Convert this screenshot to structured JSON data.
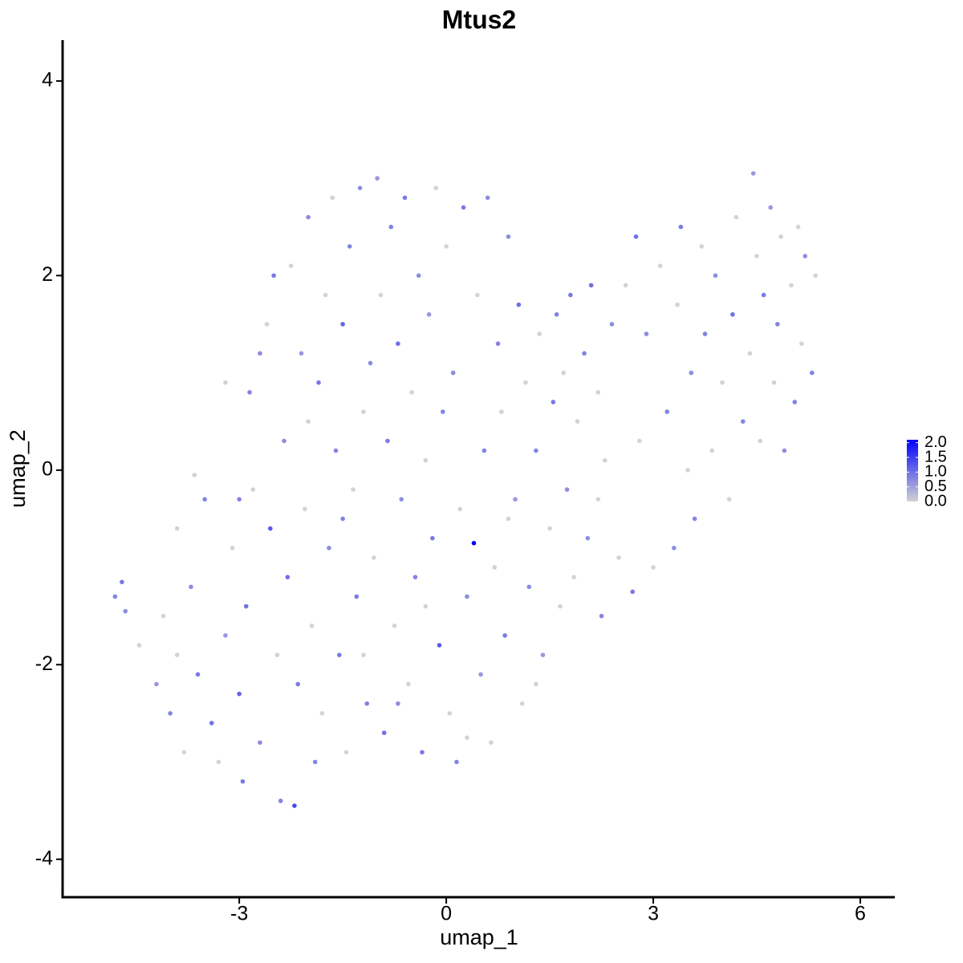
{
  "chart_data": {
    "type": "scatter",
    "title": "Mtus2",
    "x_label": "umap_1",
    "y_label": "umap_2",
    "xlim": [
      -5.56,
      6.5
    ],
    "ylim": [
      -4.39,
      4.42
    ],
    "xticks": [
      -3,
      0,
      3,
      6
    ],
    "yticks": [
      -4,
      -2,
      0,
      2,
      4
    ],
    "color_scale": {
      "low": "#d3d3d3",
      "high": "#0000ff"
    },
    "clim": [
      0,
      2.1
    ],
    "cticks": [
      {
        "value": 0,
        "label": "0.0"
      },
      {
        "value": 0.5,
        "label": "0.5"
      },
      {
        "value": 1,
        "label": "1.0"
      },
      {
        "value": 1.5,
        "label": "1.5"
      },
      {
        "value": 2,
        "label": "2.0"
      }
    ],
    "x": [
      -4.8,
      -4.7,
      -4.65,
      -4.45,
      -4.2,
      -4.1,
      -4.0,
      -3.9,
      -3.8,
      -3.7,
      -3.6,
      -3.5,
      -3.4,
      -3.3,
      -3.2,
      -3.1,
      -3.0,
      -2.95,
      -2.9,
      -2.85,
      -2.8,
      -2.7,
      -2.6,
      -2.55,
      -2.5,
      -2.45,
      -2.4,
      -2.35,
      -2.3,
      -2.25,
      -2.2,
      -2.15,
      -2.1,
      -2.05,
      -2.0,
      -1.95,
      -1.9,
      -1.85,
      -1.8,
      -1.75,
      -1.7,
      -1.65,
      -1.6,
      -1.55,
      -1.5,
      -1.45,
      -1.4,
      -1.35,
      -1.3,
      -1.25,
      -1.2,
      -1.15,
      -1.1,
      -1.05,
      -1.0,
      -0.95,
      -0.9,
      -0.85,
      -0.8,
      -0.75,
      -0.7,
      -0.65,
      -0.6,
      -0.55,
      -0.5,
      -0.45,
      -0.4,
      -0.35,
      -0.3,
      -0.25,
      -0.2,
      -0.15,
      -0.1,
      -0.05,
      0.0,
      0.05,
      0.1,
      0.15,
      0.2,
      0.25,
      0.3,
      0.4,
      0.45,
      0.5,
      0.55,
      0.6,
      0.65,
      0.7,
      0.75,
      0.8,
      0.85,
      0.9,
      1.0,
      1.05,
      1.1,
      1.15,
      1.2,
      1.3,
      1.35,
      1.4,
      1.5,
      1.55,
      1.6,
      1.65,
      1.7,
      1.75,
      1.8,
      1.85,
      1.9,
      2.0,
      2.05,
      2.1,
      2.2,
      2.25,
      2.3,
      2.4,
      2.5,
      2.6,
      2.7,
      2.75,
      2.8,
      2.9,
      3.0,
      3.1,
      3.2,
      3.3,
      3.35,
      3.4,
      3.5,
      3.55,
      3.6,
      3.7,
      3.75,
      3.85,
      3.9,
      4.0,
      4.1,
      4.15,
      4.2,
      4.3,
      4.4,
      4.45,
      4.5,
      4.55,
      4.6,
      4.7,
      4.75,
      4.8,
      4.85,
      4.9,
      5.0,
      5.05,
      5.1,
      5.15,
      5.2,
      5.3,
      5.35,
      -3.65,
      -3.2,
      -2.7,
      -3.0,
      -3.9,
      -1.2,
      -0.7,
      0.3,
      0.9,
      1.3,
      -2.0,
      -1.5,
      -0.3,
      2.2
    ],
    "y": [
      -1.3,
      -1.15,
      -1.45,
      -1.8,
      -2.2,
      -1.5,
      -2.5,
      -1.9,
      -2.9,
      -1.2,
      -2.1,
      -0.3,
      -2.6,
      -3.0,
      -1.7,
      -0.8,
      -2.3,
      -3.2,
      -1.4,
      0.8,
      -0.2,
      -2.8,
      1.5,
      -0.6,
      2.0,
      -1.9,
      -3.4,
      0.3,
      -1.1,
      2.1,
      -3.45,
      -2.2,
      1.2,
      -0.4,
      2.6,
      -1.6,
      -3.0,
      0.9,
      -2.5,
      1.8,
      -0.8,
      2.8,
      0.2,
      -1.9,
      1.5,
      -2.9,
      2.3,
      -0.2,
      -1.3,
      2.9,
      0.6,
      -2.4,
      1.1,
      -0.9,
      3.0,
      1.8,
      -2.7,
      0.3,
      2.5,
      -1.6,
      1.3,
      -0.3,
      2.8,
      -2.2,
      0.8,
      -1.1,
      2.0,
      -2.9,
      0.1,
      1.6,
      -0.7,
      2.9,
      -1.8,
      0.6,
      2.3,
      -2.5,
      1.0,
      -3.0,
      -0.4,
      2.7,
      -1.3,
      -0.75,
      1.8,
      -2.1,
      0.2,
      2.8,
      -2.8,
      -1.0,
      1.3,
      0.6,
      -1.7,
      2.4,
      -0.3,
      1.7,
      -2.4,
      0.9,
      -1.2,
      0.2,
      1.4,
      -1.9,
      -0.6,
      0.7,
      1.6,
      -1.4,
      1.0,
      -0.2,
      1.8,
      -1.1,
      0.5,
      1.2,
      -0.7,
      1.9,
      0.8,
      -1.5,
      0.1,
      1.5,
      -0.9,
      1.9,
      -1.25,
      2.4,
      0.3,
      1.4,
      -1.0,
      2.1,
      0.6,
      -0.8,
      1.7,
      2.5,
      0.0,
      1.0,
      -0.5,
      2.3,
      1.4,
      0.2,
      2.0,
      0.9,
      -0.3,
      1.6,
      2.6,
      0.5,
      1.2,
      3.05,
      2.2,
      0.3,
      1.8,
      2.7,
      0.9,
      1.5,
      2.4,
      0.2,
      1.9,
      0.7,
      2.5,
      1.3,
      2.2,
      1.0,
      2.0,
      -0.05,
      0.9,
      1.2,
      -0.3,
      -0.6,
      -1.9,
      -2.4,
      -2.75,
      -0.5,
      -2.2,
      0.5,
      -0.5,
      -1.4,
      -0.3
    ],
    "values": [
      0.8,
      0.9,
      0.7,
      0,
      0.6,
      0,
      0.8,
      0,
      0,
      0.7,
      0.9,
      0.8,
      1.0,
      0,
      0.6,
      0,
      1.1,
      0.9,
      1.0,
      0.8,
      0,
      0.7,
      0,
      1.2,
      0.9,
      0,
      0.8,
      0.7,
      1.0,
      0,
      1.4,
      0.9,
      0.6,
      0,
      0.7,
      0,
      0.8,
      0.9,
      0,
      0,
      0.7,
      0,
      0.8,
      0.9,
      1.1,
      0,
      0.8,
      0,
      0.9,
      0.7,
      0,
      0.8,
      0.7,
      0,
      0.6,
      0,
      1.0,
      0.9,
      0.8,
      0,
      1.0,
      0.7,
      0.9,
      0,
      0,
      0.8,
      0.7,
      0.9,
      0,
      0.6,
      0.9,
      0,
      1.2,
      0.8,
      0,
      0,
      0.7,
      0.8,
      0,
      0.9,
      0.7,
      2.1,
      0,
      0.6,
      0.8,
      0.7,
      0,
      0,
      0.8,
      0,
      0.9,
      0.7,
      0.6,
      1.0,
      0,
      0,
      0.7,
      0.8,
      0,
      0.6,
      0,
      0.9,
      0.8,
      0,
      0,
      0.7,
      0.9,
      0,
      0,
      0.8,
      0.7,
      1.0,
      0,
      0.8,
      0,
      0.7,
      0,
      0,
      0.9,
      1.0,
      0,
      0.7,
      0,
      0,
      0.8,
      0.7,
      0,
      0.9,
      0,
      0.7,
      0.8,
      0,
      0.8,
      0,
      0.7,
      0,
      0,
      1.0,
      0,
      0.8,
      0,
      0.6,
      0,
      0,
      0.9,
      0.6,
      0,
      0.8,
      0,
      0.7,
      0,
      0.8,
      0,
      0,
      0.7,
      0.8,
      0,
      0,
      0,
      0.7,
      0.8,
      0,
      0,
      0.7,
      0,
      0,
      0,
      0,
      0.8,
      0,
      0
    ]
  }
}
